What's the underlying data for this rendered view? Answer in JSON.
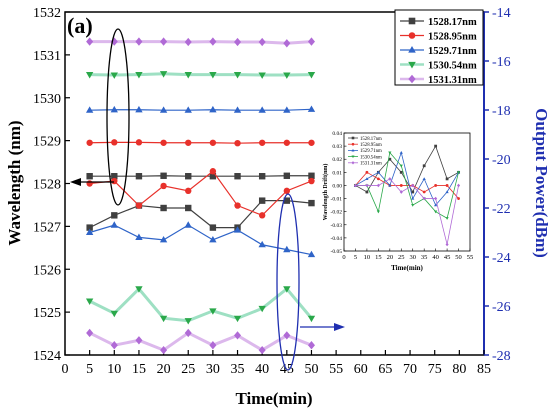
{
  "chart_data": {
    "type": "line",
    "panel_label": "(a)",
    "xlabel": "Time(min)",
    "ylabel_left": "Wavelength (nm)",
    "ylabel_right": "Output Power(dBm)",
    "xlim": [
      0,
      85
    ],
    "ylim_left": [
      1524,
      1532
    ],
    "ylim_right": [
      -28,
      -14
    ],
    "x_ticks": [
      0,
      5,
      10,
      15,
      20,
      25,
      30,
      35,
      40,
      45,
      50,
      55,
      60,
      65,
      70,
      75,
      80,
      85
    ],
    "y_ticks_left": [
      1524,
      1525,
      1526,
      1527,
      1528,
      1529,
      1530,
      1531,
      1532
    ],
    "y_ticks_right": [
      -28,
      -26,
      -24,
      -22,
      -20,
      -18,
      -16,
      -14
    ],
    "legend_position": "top-right",
    "x": [
      5,
      10,
      15,
      20,
      25,
      30,
      35,
      40,
      45,
      50
    ],
    "series": [
      {
        "name": "1528.17nm",
        "color": "#404040",
        "marker": "square",
        "lineColor": "#404040",
        "lineWidth": 1.2,
        "wavelength": [
          1528.17,
          1528.17,
          1528.17,
          1528.18,
          1528.17,
          1528.17,
          1528.17,
          1528.17,
          1528.18,
          1528.18
        ],
        "power": [
          -22.8,
          -22.3,
          -21.9,
          -22.0,
          -22.0,
          -22.8,
          -22.8,
          -21.7,
          -21.7,
          -21.8
        ]
      },
      {
        "name": "1528.95nm",
        "color": "#e8312b",
        "marker": "circle",
        "lineColor": "#e8312b",
        "lineWidth": 1.2,
        "wavelength": [
          1528.95,
          1528.96,
          1528.96,
          1528.95,
          1528.95,
          1528.95,
          1528.94,
          1528.95,
          1528.95,
          1528.95
        ],
        "power": [
          -21.0,
          -20.9,
          -21.9,
          -21.1,
          -21.3,
          -20.5,
          -21.9,
          -22.3,
          -21.3,
          -20.9
        ]
      },
      {
        "name": "1529.71nm",
        "color": "#2f64c8",
        "marker": "triangle-up",
        "lineColor": "#2f64c8",
        "lineWidth": 1.2,
        "wavelength": [
          1529.71,
          1529.72,
          1529.72,
          1529.71,
          1529.71,
          1529.72,
          1529.71,
          1529.71,
          1529.71,
          1529.73
        ],
        "power": [
          -23.0,
          -22.7,
          -23.2,
          -23.3,
          -22.7,
          -23.3,
          -22.9,
          -23.5,
          -23.7,
          -23.9
        ]
      },
      {
        "name": "1530.54nm",
        "color": "#2aa84a",
        "marker": "triangle-down",
        "lineColor": "#9ee0c3",
        "lineWidth": 3,
        "wavelength": [
          1530.54,
          1530.53,
          1530.54,
          1530.56,
          1530.54,
          1530.54,
          1530.54,
          1530.53,
          1530.53,
          1530.54
        ],
        "power": [
          -25.8,
          -26.3,
          -25.3,
          -26.5,
          -26.6,
          -26.2,
          -26.5,
          -26.1,
          -25.3,
          -26.5
        ]
      },
      {
        "name": "1531.31nm",
        "color": "#b06ad6",
        "marker": "diamond",
        "lineColor": "#dcb8ec",
        "lineWidth": 3,
        "wavelength": [
          1531.31,
          1531.31,
          1531.31,
          1531.31,
          1531.3,
          1531.31,
          1531.3,
          1531.3,
          1531.27,
          1531.31
        ],
        "power": [
          -27.1,
          -27.6,
          -27.4,
          -27.8,
          -27.1,
          -27.6,
          -27.2,
          -27.8,
          -27.2,
          -27.6
        ]
      }
    ],
    "inset": {
      "xlabel": "Time(min)",
      "ylabel": "Wavelength Drift(nm)",
      "xlim": [
        0,
        55
      ],
      "ylim": [
        -0.05,
        0.04
      ],
      "x_ticks": [
        0,
        5,
        10,
        15,
        20,
        25,
        30,
        35,
        40,
        45,
        50,
        55
      ],
      "y_ticks": [
        "0.04",
        "0.03",
        "0.02",
        "0.01",
        "0.00",
        "-0.01",
        "-0.02",
        "-0.03",
        "-0.04",
        "-0.05"
      ],
      "x": [
        5,
        10,
        15,
        20,
        25,
        30,
        35,
        40,
        45,
        50
      ],
      "series": [
        {
          "name": "1528.17nm",
          "color": "#404040",
          "values": [
            0.0,
            -0.005,
            0.01,
            0.02,
            0.01,
            -0.005,
            0.015,
            0.03,
            0.005,
            0.01
          ]
        },
        {
          "name": "1528.95nm",
          "color": "#e8312b",
          "values": [
            0.0,
            0.01,
            0.005,
            0.0,
            0.0,
            0.0,
            -0.005,
            0.0,
            0.0,
            -0.01
          ]
        },
        {
          "name": "1529.71nm",
          "color": "#2f64c8",
          "values": [
            0.0,
            0.005,
            0.01,
            0.0,
            0.025,
            -0.01,
            0.005,
            -0.015,
            -0.005,
            0.01
          ]
        },
        {
          "name": "1530.54nm",
          "color": "#2aa84a",
          "values": [
            0.0,
            0.0,
            -0.02,
            0.025,
            0.015,
            -0.015,
            -0.01,
            -0.02,
            -0.025,
            0.01
          ]
        },
        {
          "name": "1531.31nm",
          "color": "#b06ad6",
          "values": [
            0.0,
            0.0,
            0.0,
            0.005,
            -0.005,
            0.0,
            -0.01,
            -0.01,
            -0.045,
            0.0
          ]
        }
      ]
    }
  }
}
